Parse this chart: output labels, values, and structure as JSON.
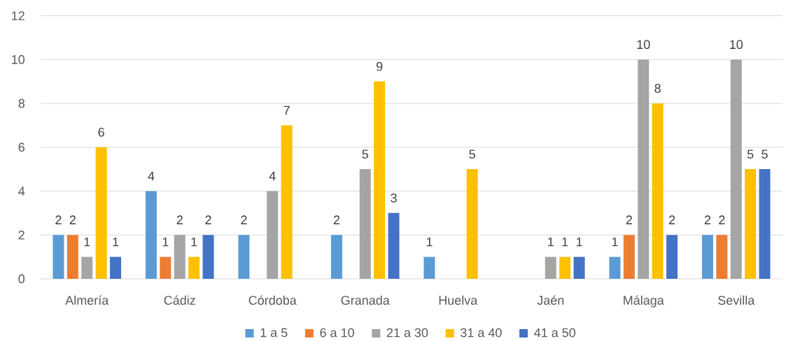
{
  "chart_data": {
    "type": "bar",
    "categories": [
      "Almería",
      "Cádiz",
      "Córdoba",
      "Granada",
      "Huelva",
      "Jaén",
      "Málaga",
      "Sevilla"
    ],
    "series": [
      {
        "name": "1 a 5",
        "color": "#5b9bd5",
        "values": [
          2,
          4,
          2,
          2,
          1,
          null,
          1,
          2
        ]
      },
      {
        "name": "6 a 10",
        "color": "#ed7d31",
        "values": [
          2,
          1,
          null,
          null,
          null,
          null,
          2,
          2
        ]
      },
      {
        "name": "21 a 30",
        "color": "#a5a5a5",
        "values": [
          1,
          2,
          4,
          5,
          null,
          1,
          10,
          10
        ]
      },
      {
        "name": "31 a 40",
        "color": "#ffc000",
        "values": [
          6,
          1,
          7,
          9,
          5,
          1,
          8,
          5
        ]
      },
      {
        "name": "41 a 50",
        "color": "#4472c4",
        "values": [
          1,
          2,
          null,
          3,
          null,
          1,
          2,
          5
        ]
      }
    ],
    "ylim": [
      0,
      12
    ],
    "yticks": [
      0,
      2,
      4,
      6,
      8,
      10,
      12
    ],
    "grid": "y",
    "legend": "bottom",
    "data_labels": true
  }
}
